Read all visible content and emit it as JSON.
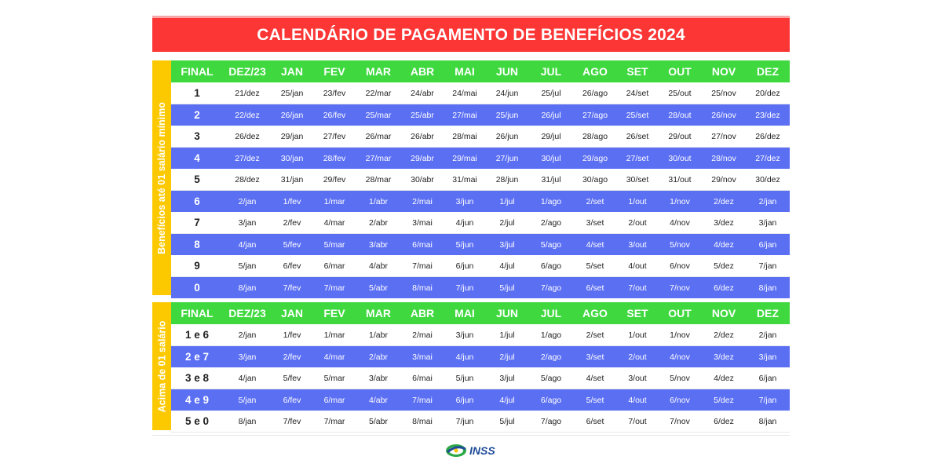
{
  "title": "CALENDÁRIO DE PAGAMENTO DE BENEFÍCIOS 2024",
  "colors": {
    "banner": "#fc3535",
    "header": "#3fd93f",
    "side": "#fcc900",
    "stripe": "#5b6ff3"
  },
  "headers": [
    "FINAL",
    "DEZ/23",
    "JAN",
    "FEV",
    "MAR",
    "ABR",
    "MAI",
    "JUN",
    "JUL",
    "AGO",
    "SET",
    "OUT",
    "NOV",
    "DEZ"
  ],
  "section1": {
    "label": "Benefícios até 01 salário mínimo",
    "rows": [
      {
        "final": "1",
        "dates": [
          "21/dez",
          "25/jan",
          "23/fev",
          "22/mar",
          "24/abr",
          "24/mai",
          "24/jun",
          "25/jul",
          "26/ago",
          "24/set",
          "25/out",
          "25/nov",
          "20/dez"
        ]
      },
      {
        "final": "2",
        "dates": [
          "22/dez",
          "26/jan",
          "26/fev",
          "25/mar",
          "25/abr",
          "27/mai",
          "25/jun",
          "26/jul",
          "27/ago",
          "25/set",
          "28/out",
          "26/nov",
          "23/dez"
        ]
      },
      {
        "final": "3",
        "dates": [
          "26/dez",
          "29/jan",
          "27/fev",
          "26/mar",
          "26/abr",
          "28/mai",
          "26/jun",
          "29/jul",
          "28/ago",
          "26/set",
          "29/out",
          "27/nov",
          "26/dez"
        ]
      },
      {
        "final": "4",
        "dates": [
          "27/dez",
          "30/jan",
          "28/fev",
          "27/mar",
          "29/abr",
          "29/mai",
          "27/jun",
          "30/jul",
          "29/ago",
          "27/set",
          "30/out",
          "28/nov",
          "27/dez"
        ]
      },
      {
        "final": "5",
        "dates": [
          "28/dez",
          "31/jan",
          "29/fev",
          "28/mar",
          "30/abr",
          "31/mai",
          "28/jun",
          "31/jul",
          "30/ago",
          "30/set",
          "31/out",
          "29/nov",
          "30/dez"
        ]
      },
      {
        "final": "6",
        "dates": [
          "2/jan",
          "1/fev",
          "1/mar",
          "1/abr",
          "2/mai",
          "3/jun",
          "1/jul",
          "1/ago",
          "2/set",
          "1/out",
          "1/nov",
          "2/dez",
          "2/jan"
        ]
      },
      {
        "final": "7",
        "dates": [
          "3/jan",
          "2/fev",
          "4/mar",
          "2/abr",
          "3/mai",
          "4/jun",
          "2/jul",
          "2/ago",
          "3/set",
          "2/out",
          "4/nov",
          "3/dez",
          "3/jan"
        ]
      },
      {
        "final": "8",
        "dates": [
          "4/jan",
          "5/fev",
          "5/mar",
          "3/abr",
          "6/mai",
          "5/jun",
          "3/jul",
          "5/ago",
          "4/set",
          "3/out",
          "5/nov",
          "4/dez",
          "6/jan"
        ]
      },
      {
        "final": "9",
        "dates": [
          "5/jan",
          "6/fev",
          "6/mar",
          "4/abr",
          "7/mai",
          "6/jun",
          "4/jul",
          "6/ago",
          "5/set",
          "4/out",
          "6/nov",
          "5/dez",
          "7/jan"
        ]
      },
      {
        "final": "0",
        "dates": [
          "8/jan",
          "7/fev",
          "7/mar",
          "5/abr",
          "8/mai",
          "7/jun",
          "5/jul",
          "7/ago",
          "6/set",
          "7/out",
          "7/nov",
          "6/dez",
          "8/jan"
        ]
      }
    ]
  },
  "section2": {
    "label": "Acima de 01 salário",
    "rows": [
      {
        "final": "1 e 6",
        "dates": [
          "2/jan",
          "1/fev",
          "1/mar",
          "1/abr",
          "2/mai",
          "3/jun",
          "1/jul",
          "1/ago",
          "2/set",
          "1/out",
          "1/nov",
          "2/dez",
          "2/jan"
        ]
      },
      {
        "final": "2 e 7",
        "dates": [
          "3/jan",
          "2/fev",
          "4/mar",
          "2/abr",
          "3/mai",
          "4/jun",
          "2/jul",
          "2/ago",
          "3/set",
          "2/out",
          "4/nov",
          "3/dez",
          "3/jan"
        ]
      },
      {
        "final": "3 e 8",
        "dates": [
          "4/jan",
          "5/fev",
          "5/mar",
          "3/abr",
          "6/mai",
          "5/jun",
          "3/jul",
          "5/ago",
          "4/set",
          "3/out",
          "5/nov",
          "4/dez",
          "6/jan"
        ]
      },
      {
        "final": "4 e 9",
        "dates": [
          "5/jan",
          "6/fev",
          "6/mar",
          "4/abr",
          "7/mai",
          "6/jun",
          "4/jul",
          "6/ago",
          "5/set",
          "4/out",
          "6/nov",
          "5/dez",
          "7/jan"
        ]
      },
      {
        "final": "5 e 0",
        "dates": [
          "8/jan",
          "7/fev",
          "7/mar",
          "5/abr",
          "8/mai",
          "7/jun",
          "5/jul",
          "7/ago",
          "6/set",
          "7/out",
          "7/nov",
          "6/dez",
          "8/jan"
        ]
      }
    ]
  },
  "logo": {
    "text": "INSS",
    "icon": "inss-logo-icon"
  }
}
